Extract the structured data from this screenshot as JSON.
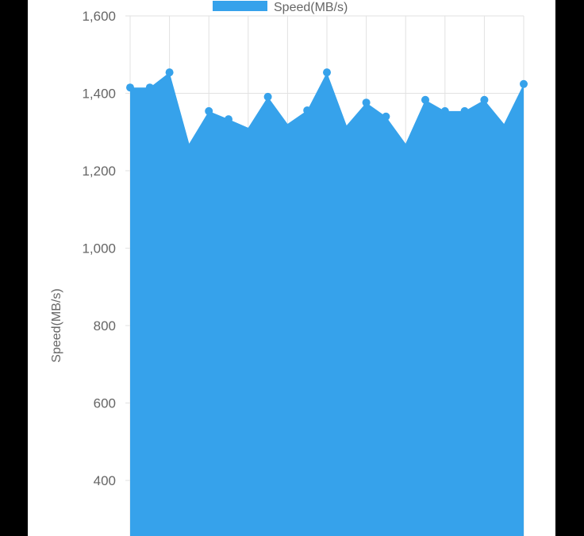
{
  "chart_data": {
    "type": "area",
    "legend": {
      "entries": [
        "Speed(MB/s)"
      ],
      "placement": "top"
    },
    "ylabel": "Speed(MB/s)",
    "xlabel": "",
    "ylim": [
      0,
      1600
    ],
    "yticks": [
      400,
      600,
      800,
      1000,
      1200,
      1400,
      1600
    ],
    "ytick_labels": [
      "400",
      "600",
      "800",
      "1,000",
      "1,200",
      "1,400",
      "1,600"
    ],
    "grid": true,
    "color": "#36a2eb",
    "series": [
      {
        "name": "Speed(MB/s)",
        "values": [
          1415,
          1415,
          1454,
          1270,
          1354,
          1333,
          1311,
          1391,
          1321,
          1356,
          1454,
          1317,
          1376,
          1340,
          1270,
          1383,
          1354,
          1354,
          1383,
          1321,
          1424
        ]
      }
    ]
  }
}
